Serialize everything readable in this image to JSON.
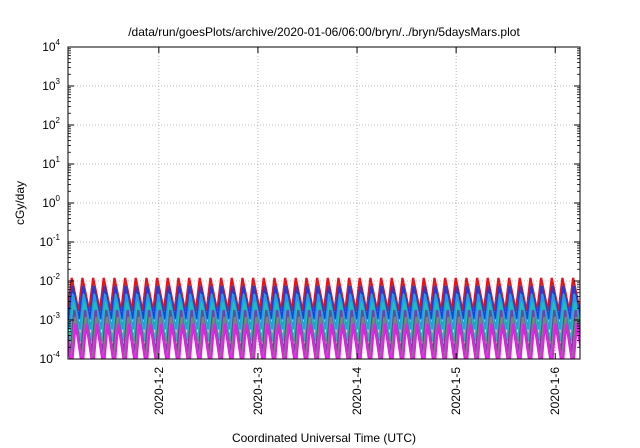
{
  "chart_data": {
    "type": "line",
    "title": "/data/run/goesPlots/archive/2020-01-06/06:00/bryn/../bryn/5daysMars.plot",
    "xlabel": "Coordinated Universal Time (UTC)",
    "ylabel": "cGy/day",
    "y_scale": "log",
    "ylim": [
      0.0001,
      10000
    ],
    "xlim": [
      "2020-01-01 02:00",
      "2020-01-06 06:00"
    ],
    "x_ticks": [
      "2020-1-2",
      "2020-1-3",
      "2020-1-4",
      "2020-1-5",
      "2020-1-6"
    ],
    "y_ticks": [
      {
        "base": "10",
        "exp": "-4"
      },
      {
        "base": "10",
        "exp": "-3"
      },
      {
        "base": "10",
        "exp": "-2"
      },
      {
        "base": "10",
        "exp": "-1"
      },
      {
        "base": "10",
        "exp": "0"
      },
      {
        "base": "10",
        "exp": "1"
      },
      {
        "base": "10",
        "exp": "2"
      },
      {
        "base": "10",
        "exp": "3"
      },
      {
        "base": "10",
        "exp": "4"
      }
    ],
    "grid": true,
    "pattern": "sawtooth",
    "series": [
      {
        "color": "#e8141c",
        "peak": 0.012,
        "trough": 0.0018
      },
      {
        "color": "#1f3fd8",
        "peak": 0.0075,
        "trough": 0.0011
      },
      {
        "color": "#1c9fe8",
        "peak": 0.0045,
        "trough": 0.0006
      },
      {
        "color": "#20c0b0",
        "peak": 0.0028,
        "trough": 0.0003
      },
      {
        "color": "#7a3fa0",
        "peak": 0.0018,
        "trough": 0.00015
      },
      {
        "color": "#808080",
        "peak": 0.0012,
        "trough": 9e-05
      },
      {
        "color": "#e81ce8",
        "peak": 0.0008,
        "trough": 6e-05
      }
    ]
  }
}
